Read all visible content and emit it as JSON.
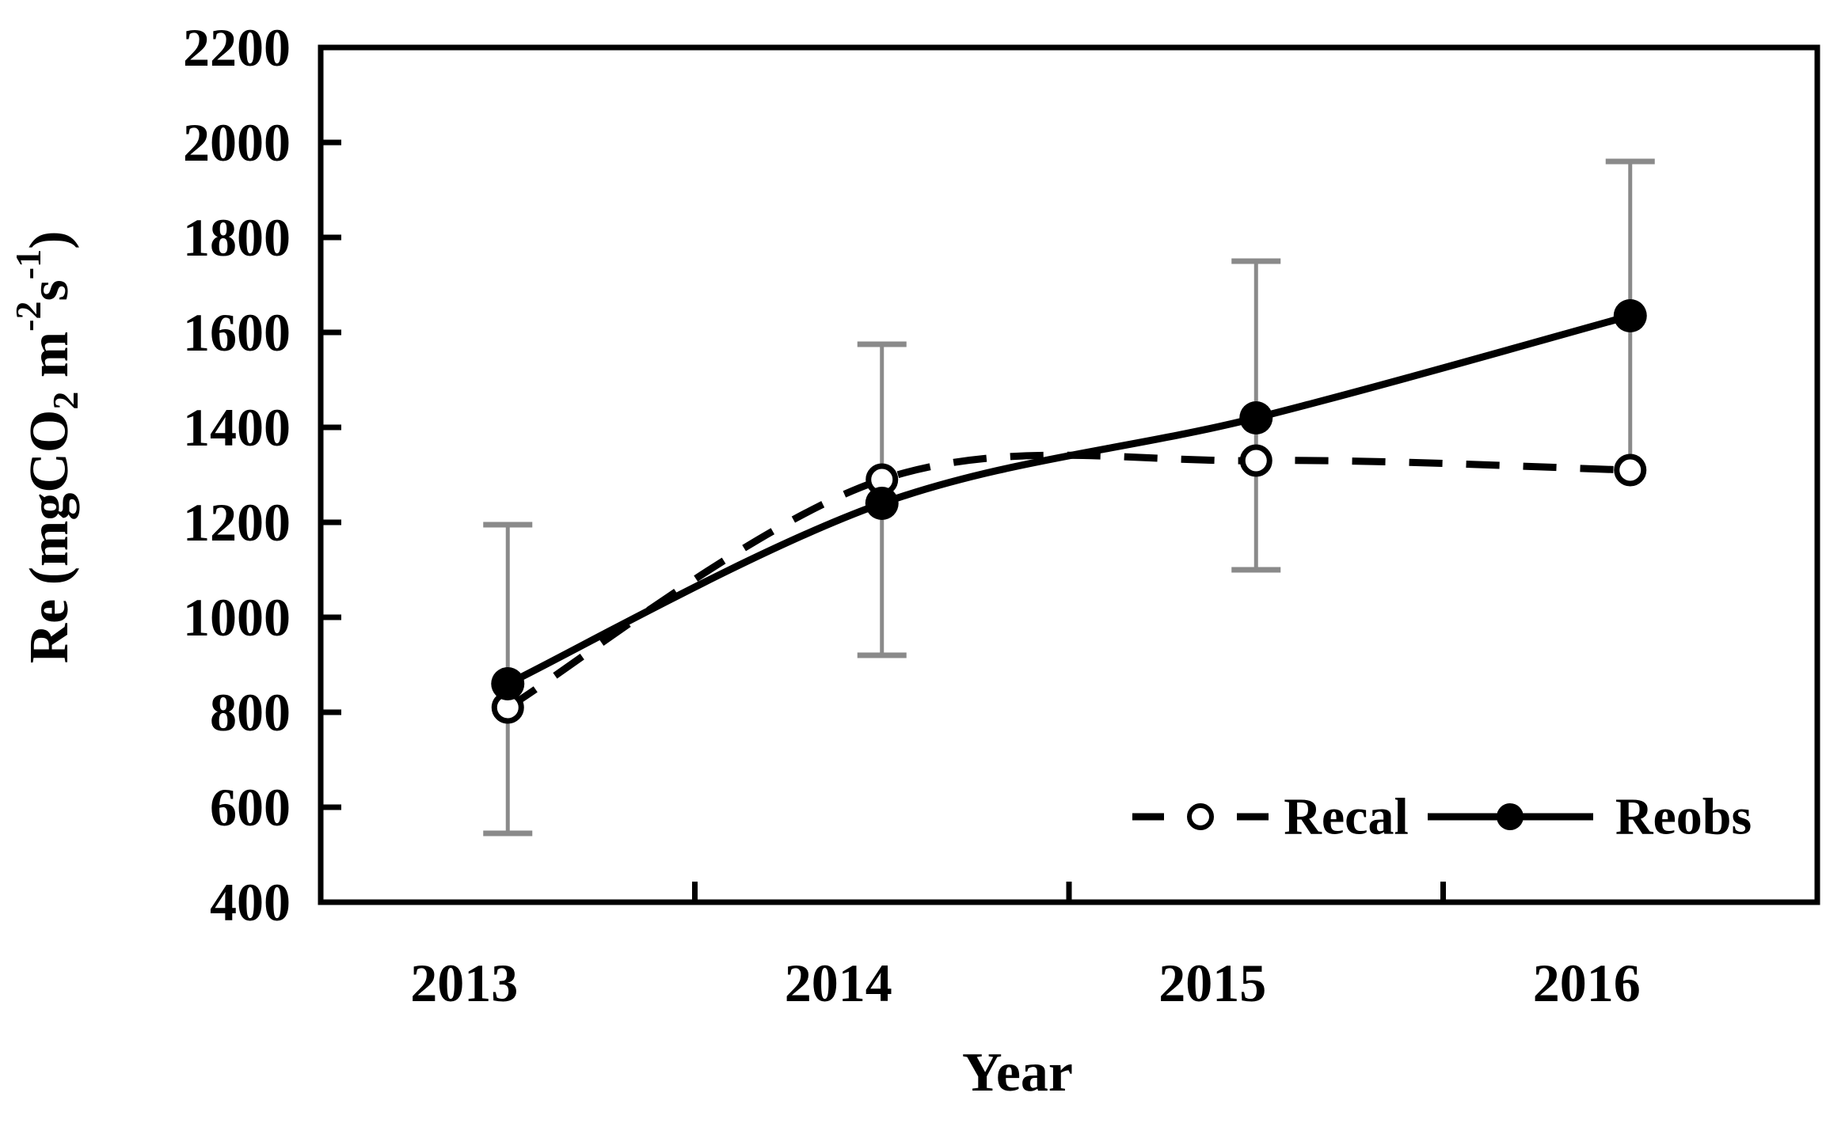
{
  "figure": {
    "background": "#ffffff",
    "text_color": "#000000"
  },
  "chart_data": {
    "type": "line",
    "title": "",
    "xlabel": "Year",
    "ylabel": "Re (mgCO2 m-2s-1)",
    "ylabel_runs": [
      {
        "text": "Re (mgCO"
      },
      {
        "text": "2",
        "script": "sub"
      },
      {
        "text": " m"
      },
      {
        "text": "-2",
        "script": "sup"
      },
      {
        "text": "s"
      },
      {
        "text": "-1",
        "script": "sup"
      },
      {
        "text": ")"
      }
    ],
    "categories": [
      "2013",
      "2014",
      "2015",
      "2016"
    ],
    "series": [
      {
        "name": "Recal",
        "values": [
          810,
          1290,
          1330,
          1310
        ],
        "line_style": "dashed",
        "marker": "open",
        "color": "#000000"
      },
      {
        "name": "Reobs",
        "values": [
          860,
          1240,
          1420,
          1635
        ],
        "line_style": "solid",
        "marker": "filled",
        "color": "#000000"
      }
    ],
    "error_bars": {
      "attached_to": "Reobs",
      "color": "#8a8a8a",
      "ranges": [
        {
          "low": 545,
          "high": 1195,
          "low_cap": true,
          "high_cap": true
        },
        {
          "low": 920,
          "high": 1575,
          "low_cap": true,
          "high_cap": true
        },
        {
          "low": 1100,
          "high": 1750,
          "low_cap": true,
          "high_cap": true
        },
        {
          "low": 1310,
          "high": 1960,
          "low_cap": false,
          "high_cap": true
        }
      ]
    },
    "ylim": [
      400,
      2200
    ],
    "yticks": [
      400,
      600,
      800,
      1000,
      1200,
      1400,
      1600,
      1800,
      2000,
      2200
    ],
    "grid": false,
    "axis_color": "#000000",
    "legend": {
      "position": "inside-bottom-right",
      "items": [
        "Recal",
        "Reobs"
      ]
    }
  }
}
